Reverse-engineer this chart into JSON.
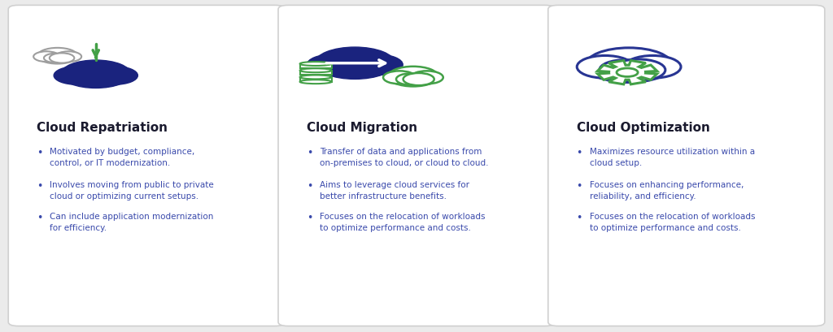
{
  "bg_color": "#ebebeb",
  "card_color": "#ffffff",
  "dark_blue": "#1a237e",
  "outline_blue": "#283593",
  "text_blue": "#3949ab",
  "green": "#43a047",
  "title_color": "#1a1a2e",
  "cards": [
    {
      "title": "Cloud Repatriation",
      "bullets": [
        "Motivated by budget, compliance,\ncontrol, or IT modernization.",
        "Involves moving from public to private\ncloud or optimizing current setups.",
        "Can include application modernization\nfor efficiency."
      ],
      "icon_type": "repatriation"
    },
    {
      "title": "Cloud Migration",
      "bullets": [
        "Transfer of data and applications from\non-premises to cloud, or cloud to cloud.",
        "Aims to leverage cloud services for\nbetter infrastructure benefits.",
        "Focuses on the relocation of workloads\nto optimize performance and costs."
      ],
      "icon_type": "migration"
    },
    {
      "title": "Cloud Optimization",
      "bullets": [
        "Maximizes resource utilization within a\ncloud setup.",
        "Focuses on enhancing performance,\nreliability, and efficiency.",
        "Focuses on the relocation of workloads\nto optimize performance and costs."
      ],
      "icon_type": "optimization"
    }
  ]
}
